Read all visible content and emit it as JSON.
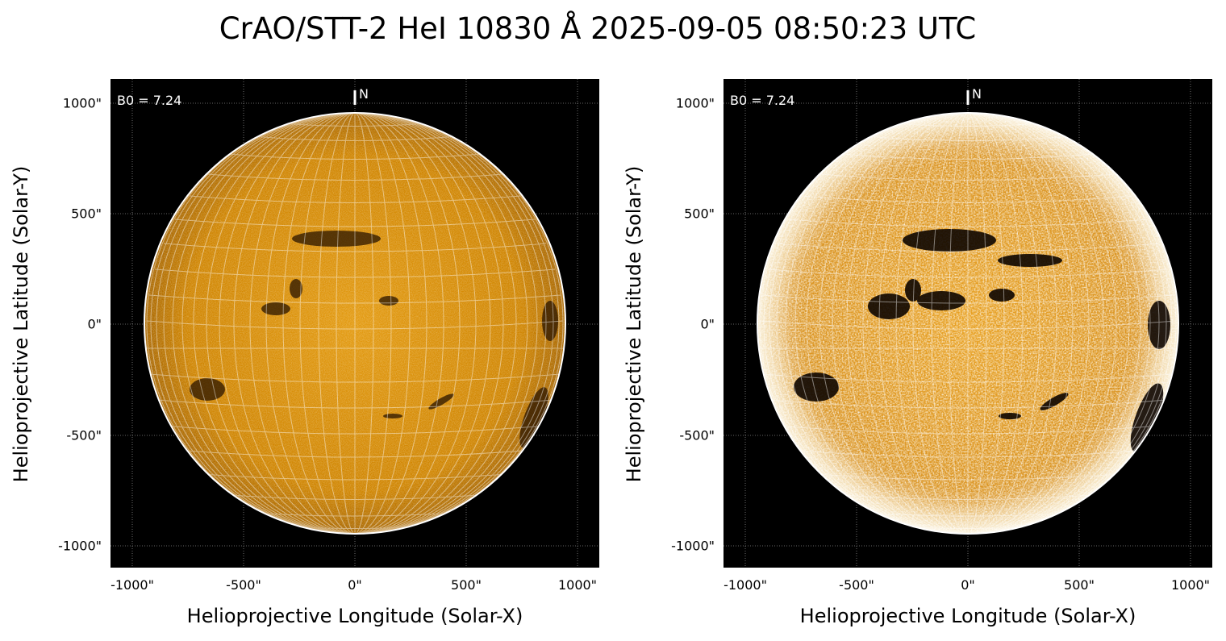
{
  "title": "CrAO/STT-2 HeI 10830 Å 2025-09-05 08:50:23 UTC",
  "colors": {
    "disk_base": "#d48a00",
    "disk_bright": "#fff1c9",
    "background": "#000000",
    "grid": "#ffffff"
  },
  "panels": [
    {
      "name": "left",
      "variant": "normal-contrast",
      "ylabel": "Helioprojective Latitude (Solar-Y)",
      "xlabel": "Helioprojective Longitude (Solar-X)",
      "yticks": [
        "1000\"",
        "500\"",
        "0\"",
        "-500\"",
        "-1000\""
      ],
      "xticks": [
        "-1000\"",
        "-500\"",
        "0\"",
        "500\"",
        "1000\""
      ],
      "b0_label": "B0 = 7.24",
      "north_label": "N"
    },
    {
      "name": "right",
      "variant": "enhanced-contrast",
      "ylabel": "Helioprojective Latitude (Solar-Y)",
      "xlabel": "Helioprojective Longitude (Solar-X)",
      "yticks": [
        "1000\"",
        "500\"",
        "0\"",
        "-500\"",
        "-1000\""
      ],
      "xticks": [
        "-1000\"",
        "-500\"",
        "0\"",
        "500\"",
        "1000\""
      ],
      "b0_label": "B0 = 7.24",
      "north_label": "N"
    }
  ]
}
